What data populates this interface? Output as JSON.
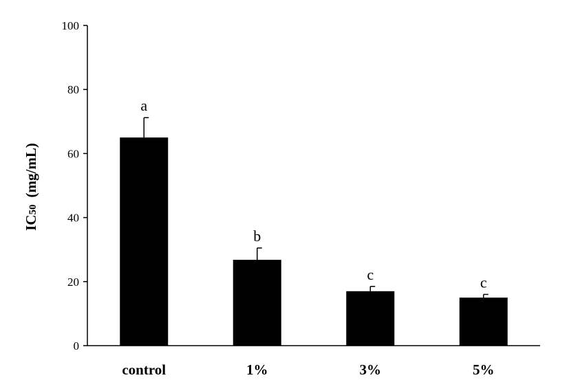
{
  "chart_data": {
    "type": "bar",
    "title": "",
    "xlabel": "",
    "ylabel": {
      "prefix": "IC",
      "subscript": "50",
      "units": "(mg/mL)"
    },
    "categories": [
      "control",
      "1%",
      "3%",
      "5%"
    ],
    "values": [
      65,
      26.8,
      17,
      15
    ],
    "errors": [
      6.2,
      3.7,
      1.5,
      1
    ],
    "significance": [
      "a",
      "b",
      "c",
      "c"
    ],
    "ylim": [
      0,
      100
    ],
    "yticks": [
      "0",
      "20",
      "40",
      "60",
      "80",
      "100"
    ],
    "grid": false,
    "legend": "none",
    "colors": {
      "bar": "#000000",
      "axis": "#000000",
      "background": "#ffffff"
    }
  }
}
